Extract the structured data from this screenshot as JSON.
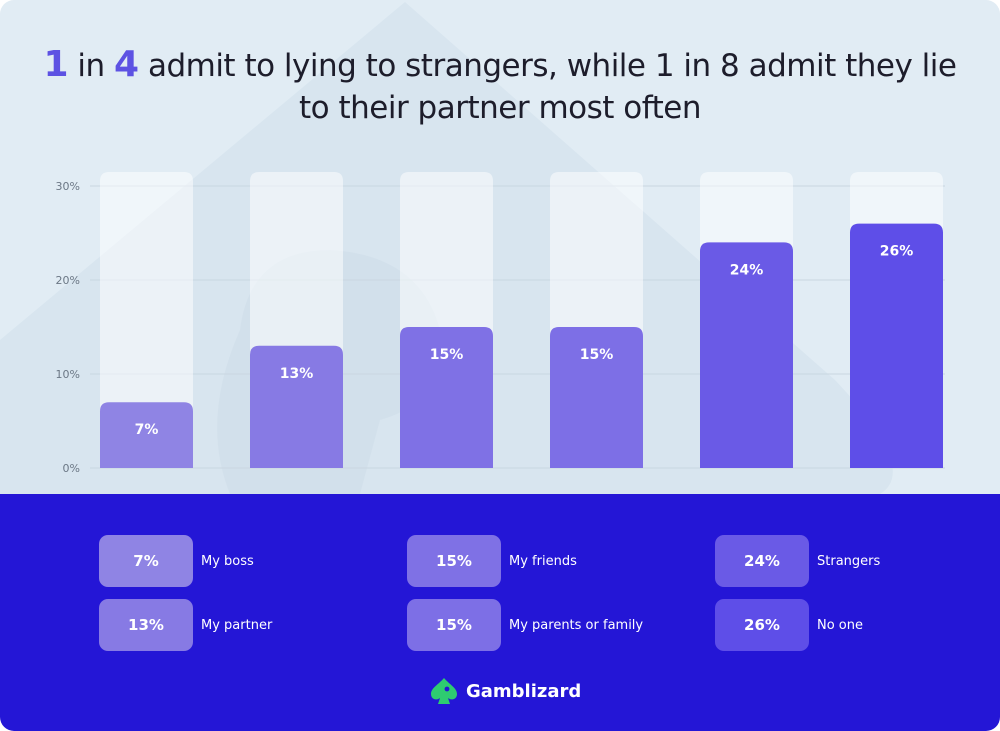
{
  "title": {
    "num1": "1",
    "word_in": " in ",
    "num2": "4",
    "rest": " admit to lying to strangers, while 1 in 8 admit they lie to their partner most often"
  },
  "chart_data": {
    "type": "bar",
    "categories": [
      "My boss",
      "My partner",
      "My friends",
      "My parents or family",
      "Strangers",
      "No one"
    ],
    "values": [
      7,
      13,
      15,
      15,
      24,
      26
    ],
    "value_labels": [
      "7%",
      "13%",
      "15%",
      "15%",
      "24%",
      "26%"
    ],
    "ylim": [
      0,
      30
    ],
    "yticks": [
      0,
      10,
      20,
      30
    ],
    "ytick_labels": [
      "0%",
      "10%",
      "20%",
      "30%"
    ],
    "grid": true,
    "colors": [
      "#8f84e4",
      "#877ae4",
      "#7f71e5",
      "#7d6fe6",
      "#6a5ae6",
      "#5e4ee8"
    ]
  },
  "legend": [
    {
      "value": "7%",
      "label": "My boss",
      "color": "#8f84e4"
    },
    {
      "value": "13%",
      "label": "My partner",
      "color": "#877ae4"
    },
    {
      "value": "15%",
      "label": "My friends",
      "color": "#7f71e5"
    },
    {
      "value": "15%",
      "label": "My parents or family",
      "color": "#7d6fe6"
    },
    {
      "value": "24%",
      "label": "Strangers",
      "color": "#6a5ae6"
    },
    {
      "value": "26%",
      "label": "No one",
      "color": "#5e4ee8"
    }
  ],
  "brand": {
    "name": "Gamblizard",
    "icon_color": "#2ecc71"
  }
}
